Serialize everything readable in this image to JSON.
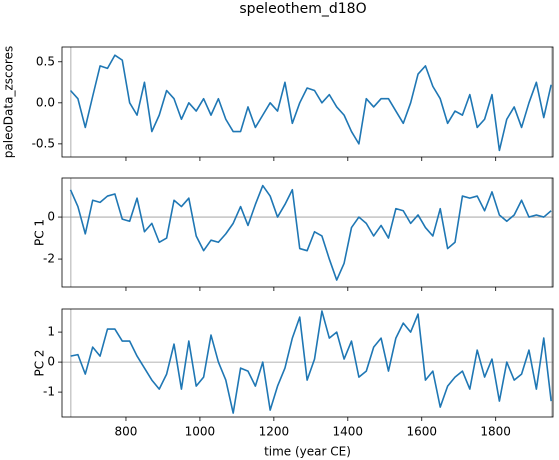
{
  "chart_data": [
    {
      "type": "line",
      "title": "speleothem_d18O",
      "ylabel": "paleoData_zscores",
      "color": "#1f77b4",
      "x": [
        650,
        670,
        690,
        710,
        730,
        750,
        770,
        790,
        810,
        830,
        850,
        870,
        890,
        910,
        930,
        950,
        970,
        990,
        1010,
        1030,
        1050,
        1070,
        1090,
        1110,
        1130,
        1150,
        1170,
        1190,
        1210,
        1230,
        1250,
        1270,
        1290,
        1310,
        1330,
        1350,
        1370,
        1390,
        1410,
        1430,
        1450,
        1470,
        1490,
        1510,
        1530,
        1550,
        1570,
        1590,
        1610,
        1630,
        1650,
        1670,
        1690,
        1710,
        1730,
        1750,
        1770,
        1790,
        1810,
        1830,
        1850,
        1870,
        1890,
        1910,
        1930,
        1950
      ],
      "values": [
        0.15,
        0.05,
        -0.3,
        0.08,
        0.45,
        0.42,
        0.58,
        0.52,
        0.0,
        -0.15,
        0.25,
        -0.35,
        -0.15,
        0.15,
        0.05,
        -0.2,
        0.0,
        -0.1,
        0.05,
        -0.15,
        0.05,
        -0.2,
        -0.35,
        -0.35,
        -0.05,
        -0.3,
        -0.15,
        0.0,
        -0.1,
        0.25,
        -0.25,
        0.0,
        0.18,
        0.15,
        0.0,
        0.1,
        -0.05,
        -0.15,
        -0.35,
        -0.5,
        0.05,
        -0.05,
        0.05,
        0.05,
        -0.1,
        -0.25,
        0.0,
        0.35,
        0.45,
        0.2,
        0.05,
        -0.25,
        -0.1,
        -0.15,
        0.1,
        -0.3,
        -0.2,
        0.1,
        -0.58,
        -0.2,
        -0.05,
        -0.3,
        0.0,
        0.25,
        -0.18,
        0.22
      ],
      "xlim": [
        627,
        1955
      ],
      "ylim": [
        -0.66,
        0.68
      ],
      "yticks": [
        0.5,
        {
          "value": 0,
          "label": "0.0"
        },
        -0.5
      ],
      "vlines": [
        651,
        1952
      ]
    },
    {
      "type": "line",
      "ylabel": "PC 1",
      "color": "#1f77b4",
      "x": [
        650,
        670,
        690,
        710,
        730,
        750,
        770,
        790,
        810,
        830,
        850,
        870,
        890,
        910,
        930,
        950,
        970,
        990,
        1010,
        1030,
        1050,
        1070,
        1090,
        1110,
        1130,
        1150,
        1170,
        1190,
        1210,
        1230,
        1250,
        1270,
        1290,
        1310,
        1330,
        1350,
        1370,
        1390,
        1410,
        1430,
        1450,
        1470,
        1490,
        1510,
        1530,
        1550,
        1570,
        1590,
        1610,
        1630,
        1650,
        1670,
        1690,
        1710,
        1730,
        1750,
        1770,
        1790,
        1810,
        1830,
        1850,
        1870,
        1890,
        1910,
        1930,
        1950
      ],
      "values": [
        1.3,
        0.5,
        -0.8,
        0.8,
        0.7,
        1.0,
        1.1,
        -0.1,
        -0.2,
        0.9,
        -0.7,
        -0.3,
        -1.2,
        -1.0,
        0.8,
        0.5,
        0.9,
        -0.9,
        -1.6,
        -1.1,
        -1.2,
        -0.8,
        -0.3,
        0.5,
        -0.4,
        0.6,
        1.5,
        1.0,
        0.0,
        0.6,
        1.3,
        -1.5,
        -1.6,
        -0.7,
        -0.9,
        -2.0,
        -3.0,
        -2.2,
        -0.5,
        0.0,
        -0.3,
        -0.9,
        -0.4,
        -1.0,
        0.4,
        0.3,
        -0.3,
        0.1,
        -0.5,
        -0.9,
        0.4,
        -1.5,
        -1.2,
        1.0,
        0.9,
        1.0,
        0.3,
        1.2,
        0.1,
        -0.2,
        0.1,
        0.8,
        0.0,
        0.1,
        0.0,
        0.3
      ],
      "xlim": [
        627,
        1955
      ],
      "ylim": [
        -3.33,
        1.86
      ],
      "yticks": [
        0,
        -2
      ],
      "vlines": [
        651,
        1952
      ],
      "hlines": [
        0
      ]
    },
    {
      "type": "line",
      "ylabel": "PC 2",
      "xlabel": "time (year CE)",
      "color": "#1f77b4",
      "x": [
        650,
        670,
        690,
        710,
        730,
        750,
        770,
        790,
        810,
        830,
        850,
        870,
        890,
        910,
        930,
        950,
        970,
        990,
        1010,
        1030,
        1050,
        1070,
        1090,
        1110,
        1130,
        1150,
        1170,
        1190,
        1210,
        1230,
        1250,
        1270,
        1290,
        1310,
        1330,
        1350,
        1370,
        1390,
        1410,
        1430,
        1450,
        1470,
        1490,
        1510,
        1530,
        1550,
        1570,
        1590,
        1610,
        1630,
        1650,
        1670,
        1690,
        1710,
        1730,
        1750,
        1770,
        1790,
        1810,
        1830,
        1850,
        1870,
        1890,
        1910,
        1930,
        1950
      ],
      "values": [
        0.2,
        0.25,
        -0.4,
        0.5,
        0.2,
        1.1,
        1.1,
        0.7,
        0.7,
        0.2,
        -0.2,
        -0.6,
        -0.9,
        -0.4,
        0.6,
        -0.9,
        0.7,
        -0.8,
        -0.5,
        0.9,
        0.0,
        -0.6,
        -1.7,
        -0.2,
        -0.3,
        -0.8,
        0.0,
        -1.6,
        -0.8,
        -0.2,
        0.8,
        1.5,
        -0.6,
        0.1,
        1.7,
        0.8,
        1.0,
        0.1,
        0.7,
        -0.5,
        -0.3,
        0.5,
        0.8,
        -0.3,
        0.8,
        1.3,
        1.0,
        1.6,
        -0.6,
        -0.3,
        -1.5,
        -0.8,
        -0.5,
        -0.3,
        -0.9,
        0.4,
        -0.5,
        0.1,
        -1.3,
        0.0,
        -0.6,
        -0.4,
        0.4,
        -0.9,
        0.8,
        -1.3
      ],
      "xlim": [
        627,
        1955
      ],
      "ylim": [
        -1.83,
        1.77
      ],
      "yticks": [
        1,
        0,
        -1
      ],
      "xticks": [
        800,
        1000,
        1200,
        1400,
        1600,
        1800
      ],
      "vlines": [
        651,
        1952
      ],
      "hlines": [
        0
      ]
    }
  ]
}
